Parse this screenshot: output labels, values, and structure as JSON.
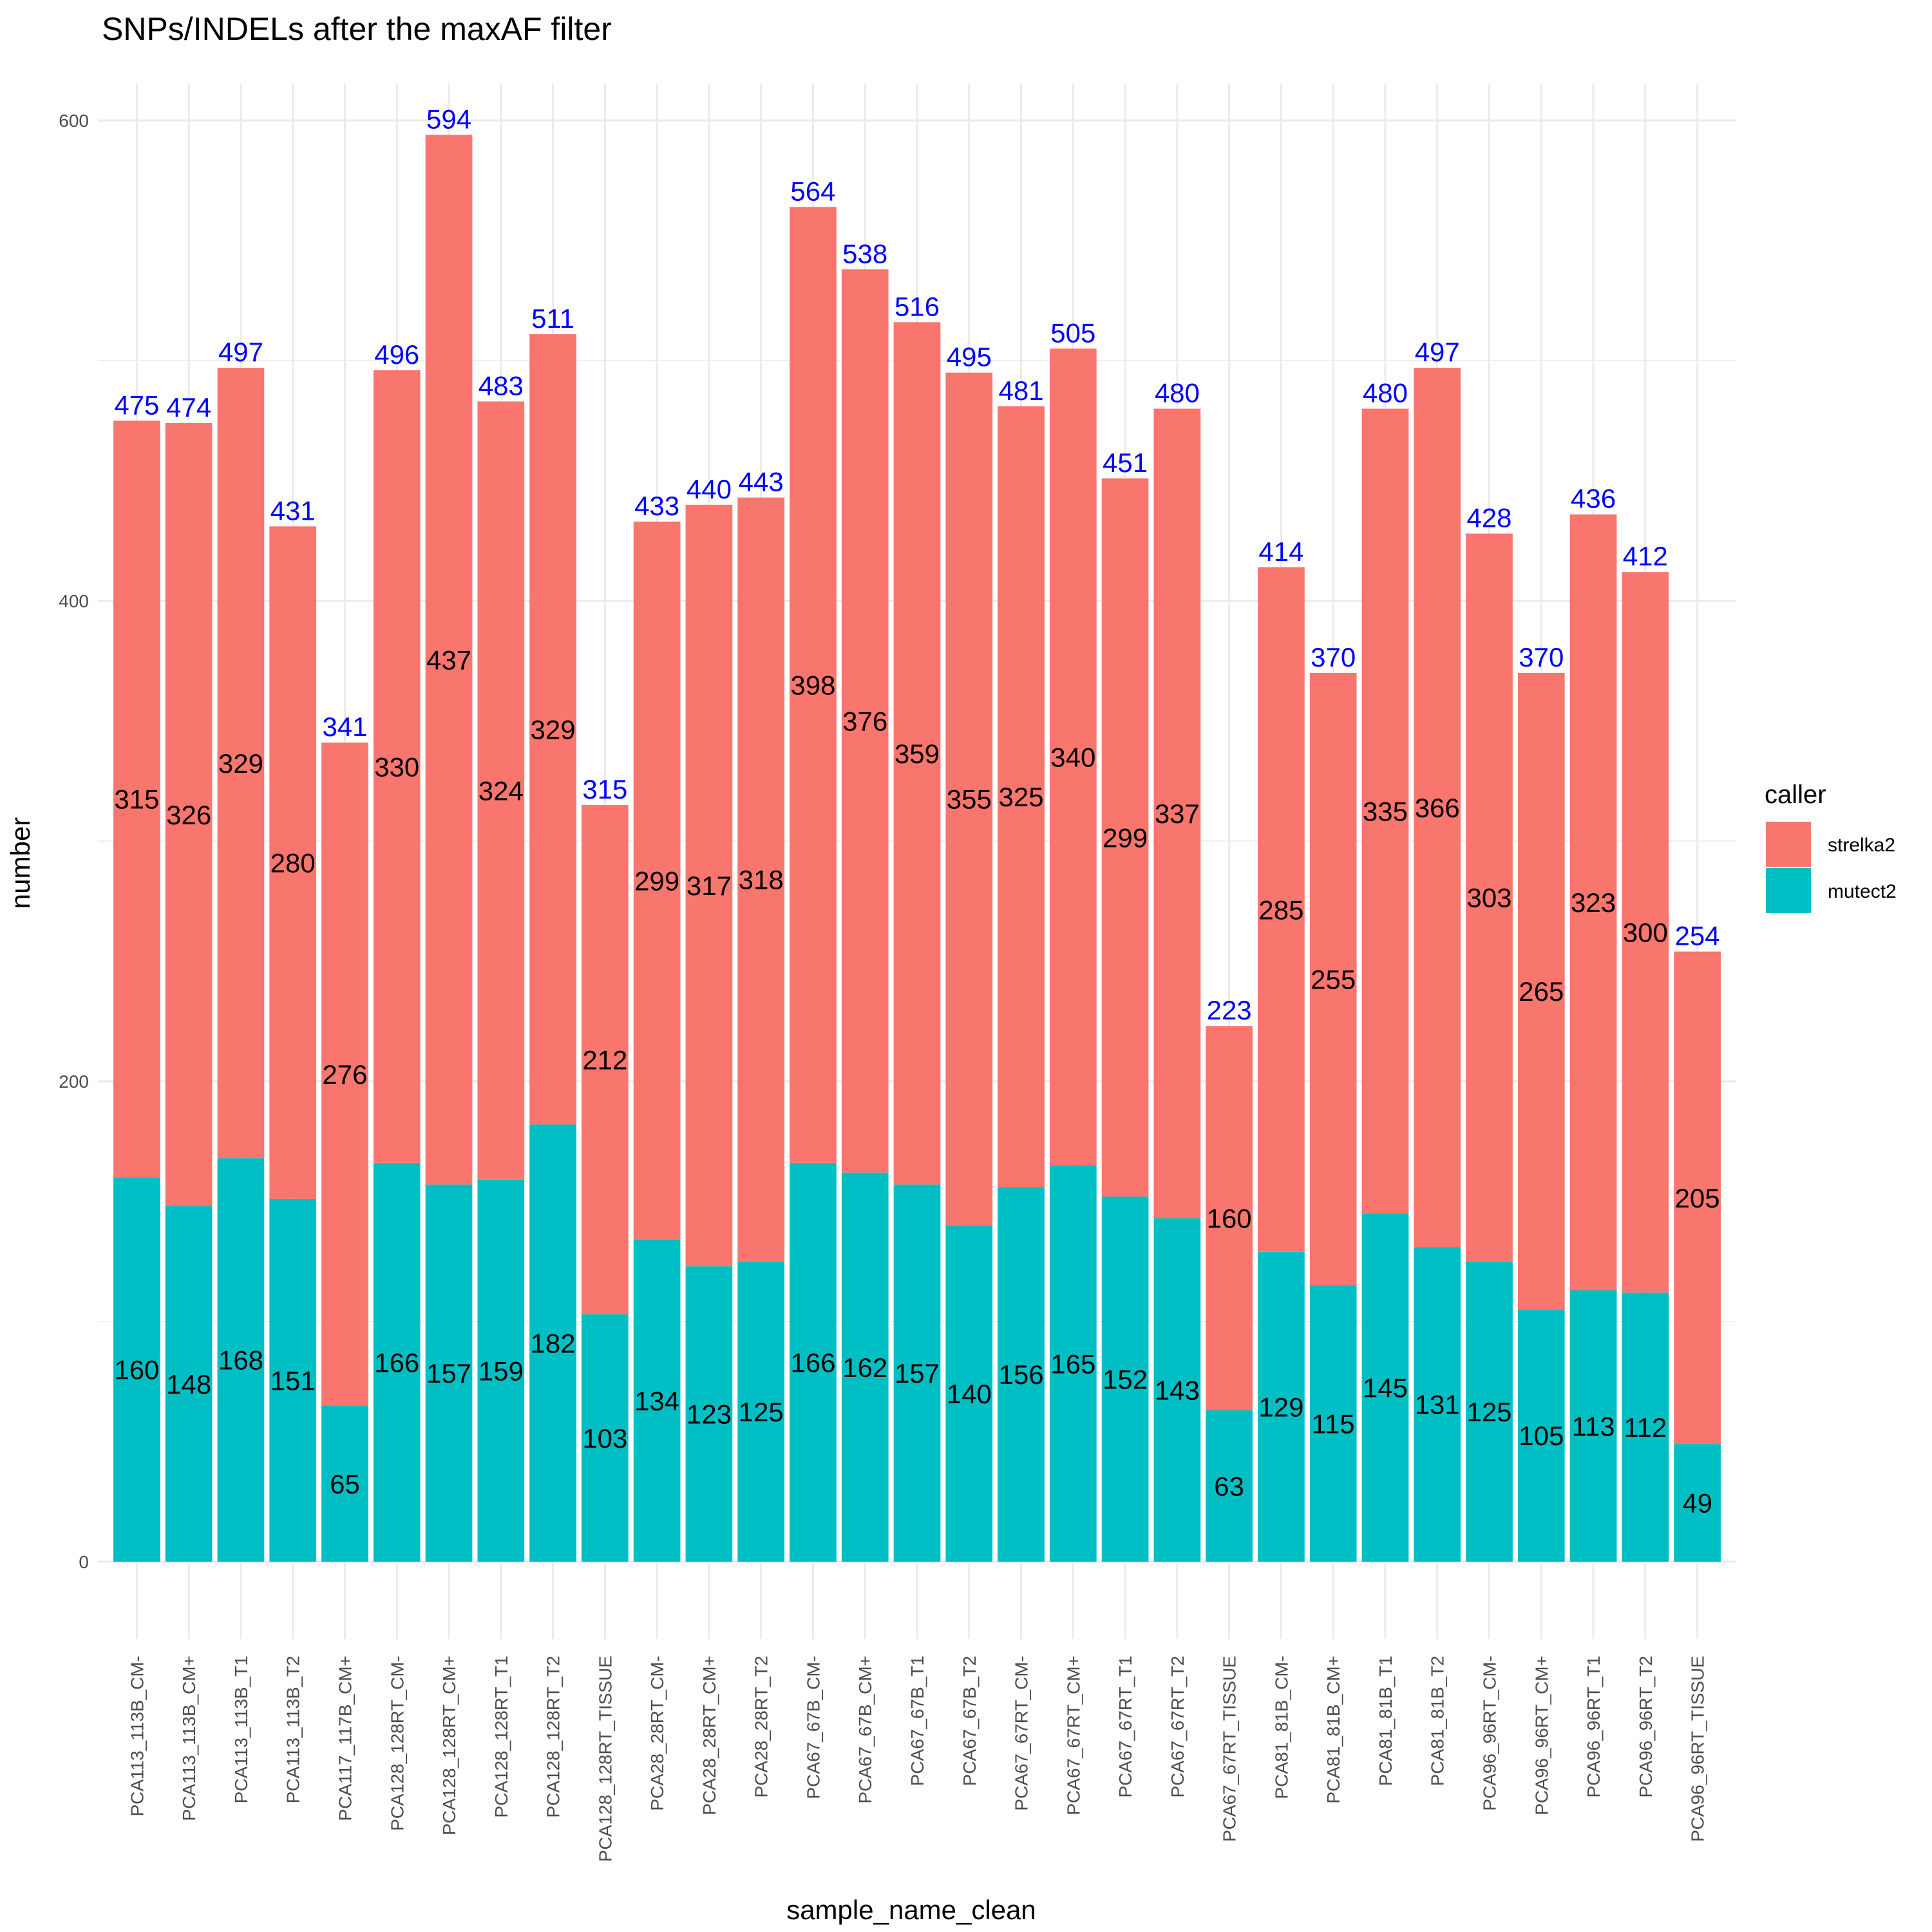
{
  "chart_data": {
    "type": "bar",
    "stacked": true,
    "title": "SNPs/INDELs after the maxAF filter",
    "xlabel": "sample_name_clean",
    "ylabel": "number",
    "ylim": [
      0,
      600
    ],
    "yticks": [
      0,
      200,
      400,
      600
    ],
    "grid": true,
    "legend": {
      "title": "caller",
      "position": "right",
      "entries": [
        {
          "name": "strelka2",
          "color": "#F8766D"
        },
        {
          "name": "mutect2",
          "color": "#00BFC4"
        }
      ]
    },
    "total_label_color": "#0000FF",
    "categories": [
      "PCA113_113B_CM-",
      "PCA113_113B_CM+",
      "PCA113_113B_T1",
      "PCA113_113B_T2",
      "PCA117_117B_CM+",
      "PCA128_128RT_CM-",
      "PCA128_128RT_CM+",
      "PCA128_128RT_T1",
      "PCA128_128RT_T2",
      "PCA128_128RT_TISSUE",
      "PCA28_28RT_CM-",
      "PCA28_28RT_CM+",
      "PCA28_28RT_T2",
      "PCA67_67B_CM-",
      "PCA67_67B_CM+",
      "PCA67_67B_T1",
      "PCA67_67B_T2",
      "PCA67_67RT_CM-",
      "PCA67_67RT_CM+",
      "PCA67_67RT_T1",
      "PCA67_67RT_T2",
      "PCA67_67RT_TISSUE",
      "PCA81_81B_CM-",
      "PCA81_81B_CM+",
      "PCA81_81B_T1",
      "PCA81_81B_T2",
      "PCA96_96RT_CM-",
      "PCA96_96RT_CM+",
      "PCA96_96RT_T1",
      "PCA96_96RT_T2",
      "PCA96_96RT_TISSUE"
    ],
    "series": [
      {
        "name": "mutect2",
        "color": "#00BFC4",
        "values": [
          160,
          148,
          168,
          151,
          65,
          166,
          157,
          159,
          182,
          103,
          134,
          123,
          125,
          166,
          162,
          157,
          140,
          156,
          165,
          152,
          143,
          63,
          129,
          115,
          145,
          131,
          125,
          105,
          113,
          112,
          49
        ]
      },
      {
        "name": "strelka2",
        "color": "#F8766D",
        "values": [
          315,
          326,
          329,
          280,
          276,
          330,
          437,
          324,
          329,
          212,
          299,
          317,
          318,
          398,
          376,
          359,
          355,
          325,
          340,
          299,
          337,
          160,
          285,
          255,
          335,
          366,
          303,
          265,
          323,
          300,
          205
        ]
      }
    ],
    "totals": [
      475,
      474,
      497,
      431,
      341,
      496,
      594,
      483,
      511,
      315,
      433,
      440,
      443,
      564,
      538,
      516,
      495,
      481,
      505,
      451,
      480,
      223,
      414,
      370,
      480,
      497,
      428,
      370,
      436,
      412,
      254
    ]
  }
}
